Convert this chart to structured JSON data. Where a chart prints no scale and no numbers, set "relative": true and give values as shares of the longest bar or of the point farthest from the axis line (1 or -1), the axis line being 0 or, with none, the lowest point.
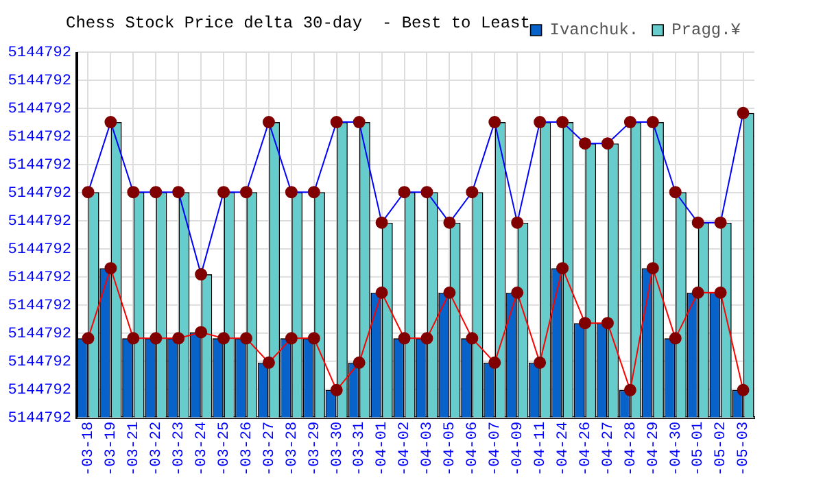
{
  "chart_data": {
    "type": "bar",
    "title": "Chess Stock Price delta 30-day  - Best to Least",
    "relative": true,
    "categories": [
      "-03-18",
      "-03-19",
      "-03-21",
      "-03-22",
      "-03-23",
      "-03-24",
      "-03-25",
      "-03-26",
      "-03-27",
      "-03-28",
      "-03-29",
      "-03-30",
      "-03-31",
      "-04-01",
      "-04-02",
      "-04-03",
      "-04-05",
      "-04-06",
      "-04-07",
      "-04-09",
      "-04-11",
      "-04-24",
      "-04-26",
      "-04-27",
      "-04-28",
      "-04-29",
      "-04-30",
      "-05-01",
      "-05-02",
      "-05-03"
    ],
    "series": [
      {
        "name": "Ivanchuk.",
        "color": "#0763c9",
        "values": [
          0.26,
          0.49,
          0.26,
          0.26,
          0.26,
          0.28,
          0.26,
          0.26,
          0.18,
          0.26,
          0.26,
          0.09,
          0.18,
          0.41,
          0.26,
          0.26,
          0.41,
          0.26,
          0.18,
          0.41,
          0.18,
          0.49,
          0.31,
          0.31,
          0.09,
          0.49,
          0.26,
          0.41,
          0.41,
          0.09
        ]
      },
      {
        "name": "Pragg.¥",
        "color": "#66cccc",
        "values": [
          0.74,
          0.97,
          0.74,
          0.74,
          0.74,
          0.47,
          0.74,
          0.74,
          0.97,
          0.74,
          0.74,
          0.97,
          0.97,
          0.64,
          0.74,
          0.74,
          0.64,
          0.74,
          0.97,
          0.64,
          0.97,
          0.97,
          0.9,
          0.9,
          0.97,
          0.97,
          0.74,
          0.64,
          0.64,
          1
        ]
      },
      {
        "type": "line",
        "color": "#ff0000",
        "values": [
          0.26,
          0.49,
          0.26,
          0.26,
          0.26,
          0.28,
          0.26,
          0.26,
          0.18,
          0.26,
          0.26,
          0.09,
          0.18,
          0.41,
          0.26,
          0.26,
          0.41,
          0.26,
          0.18,
          0.41,
          0.18,
          0.49,
          0.31,
          0.31,
          0.09,
          0.49,
          0.26,
          0.41,
          0.41,
          0.09
        ]
      },
      {
        "type": "line",
        "color": "#0000ff",
        "values": [
          0.74,
          0.97,
          0.74,
          0.74,
          0.74,
          0.47,
          0.74,
          0.74,
          0.97,
          0.74,
          0.74,
          0.97,
          0.97,
          0.64,
          0.74,
          0.74,
          0.64,
          0.74,
          0.97,
          0.64,
          0.97,
          0.97,
          0.9,
          0.9,
          0.97,
          0.97,
          0.74,
          0.64,
          0.64,
          1
        ]
      }
    ],
    "annotations": [
      "5144792",
      "5144792",
      "5144792",
      "5144792",
      "5144792",
      "5144792",
      "5144792",
      "5144792",
      "5144792",
      "5144792",
      "5144792",
      "5144792",
      "5144792",
      "5144792"
    ],
    "grid": true,
    "legend": "top right",
    "marker": "circle"
  }
}
